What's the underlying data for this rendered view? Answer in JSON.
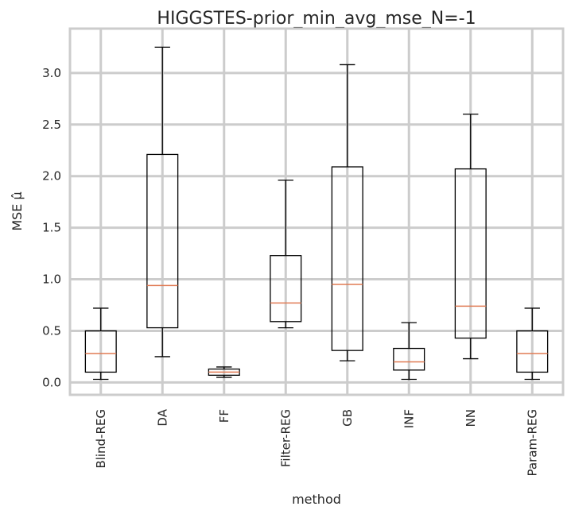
{
  "chart_data": {
    "type": "box",
    "title": "HIGGSTES-prior_min_avg_mse_N=-1",
    "xlabel": "method",
    "ylabel": "MSE μ̂",
    "ylim": [
      -0.12,
      3.43
    ],
    "yticks": [
      "0.0",
      "0.5",
      "1.0",
      "1.5",
      "2.0",
      "2.5",
      "3.0"
    ],
    "grid": true,
    "categories": [
      "Blind-REG",
      "DA",
      "FF",
      "Filter-REG",
      "GB",
      "INF",
      "NN",
      "Param-REG"
    ],
    "boxes": [
      {
        "label": "Blind-REG",
        "whislo": 0.03,
        "q1": 0.1,
        "med": 0.28,
        "q3": 0.5,
        "whishi": 0.72
      },
      {
        "label": "DA",
        "whislo": 0.25,
        "q1": 0.53,
        "med": 0.94,
        "q3": 2.21,
        "whishi": 3.25
      },
      {
        "label": "FF",
        "whislo": 0.05,
        "q1": 0.07,
        "med": 0.1,
        "q3": 0.13,
        "whishi": 0.15
      },
      {
        "label": "Filter-REG",
        "whislo": 0.53,
        "q1": 0.59,
        "med": 0.77,
        "q3": 1.23,
        "whishi": 1.96
      },
      {
        "label": "GB",
        "whislo": 0.21,
        "q1": 0.31,
        "med": 0.95,
        "q3": 2.09,
        "whishi": 3.08
      },
      {
        "label": "INF",
        "whislo": 0.03,
        "q1": 0.12,
        "med": 0.2,
        "q3": 0.33,
        "whishi": 0.58
      },
      {
        "label": "NN",
        "whislo": 0.23,
        "q1": 0.43,
        "med": 0.74,
        "q3": 2.07,
        "whishi": 2.6
      },
      {
        "label": "Param-REG",
        "whislo": 0.03,
        "q1": 0.1,
        "med": 0.28,
        "q3": 0.5,
        "whishi": 0.72
      }
    ],
    "colors": {
      "box": "#000000",
      "median": "#e07b54",
      "grid": "#cccccc"
    }
  }
}
